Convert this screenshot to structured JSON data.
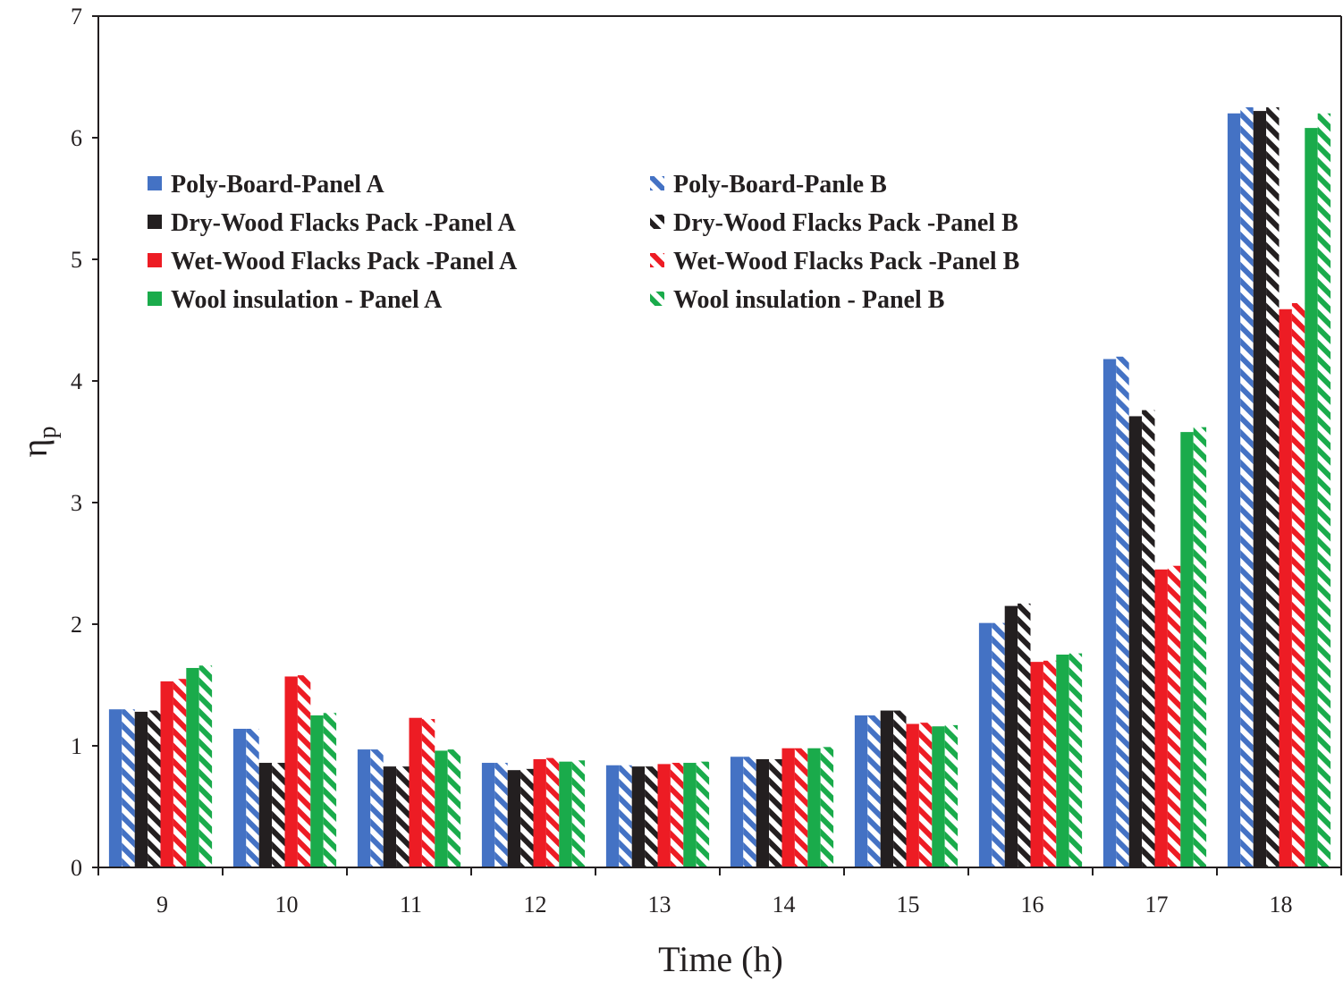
{
  "chart_data": {
    "type": "bar",
    "title": "",
    "xlabel": "Time (h)",
    "ylabel_main": "η",
    "ylabel_sub": "p",
    "ylim": [
      0,
      7
    ],
    "yticks": [
      "0",
      "1",
      "2",
      "3",
      "4",
      "5",
      "6",
      "7"
    ],
    "categories": [
      "9",
      "10",
      "11",
      "12",
      "13",
      "14",
      "15",
      "16",
      "17",
      "18"
    ],
    "series": [
      {
        "name": "Poly-Board-Panel A",
        "color": "#4472c4",
        "pattern": "solid",
        "values": [
          1.3,
          1.14,
          0.97,
          0.86,
          0.84,
          0.91,
          1.25,
          2.01,
          4.18,
          6.2
        ]
      },
      {
        "name": "Poly-Board-Panle B",
        "color": "#4472c4",
        "pattern": "hatched",
        "values": [
          1.3,
          1.14,
          0.97,
          0.86,
          0.84,
          0.91,
          1.25,
          2.01,
          4.2,
          6.25
        ]
      },
      {
        "name": "Dry-Wood Flacks Pack -Panel A",
        "color": "#231f20",
        "pattern": "solid",
        "values": [
          1.28,
          0.86,
          0.83,
          0.8,
          0.83,
          0.89,
          1.29,
          2.15,
          3.71,
          6.22
        ]
      },
      {
        "name": "Dry-Wood Flacks Pack -Panel B",
        "color": "#231f20",
        "pattern": "hatched",
        "values": [
          1.29,
          0.86,
          0.83,
          0.81,
          0.83,
          0.89,
          1.29,
          2.17,
          3.76,
          6.25
        ]
      },
      {
        "name": "Wet-Wood Flacks Pack -Panel A",
        "color": "#ed1c24",
        "pattern": "solid",
        "values": [
          1.53,
          1.57,
          1.23,
          0.89,
          0.85,
          0.98,
          1.18,
          1.69,
          2.45,
          4.59
        ]
      },
      {
        "name": "Wet-Wood Flacks Pack -Panel B",
        "color": "#ed1c24",
        "pattern": "hatched",
        "values": [
          1.55,
          1.58,
          1.22,
          0.9,
          0.86,
          0.98,
          1.19,
          1.7,
          2.48,
          4.64
        ]
      },
      {
        "name": "Wool insulation - Panel A",
        "color": "#1aab4b",
        "pattern": "solid",
        "values": [
          1.64,
          1.25,
          0.96,
          0.87,
          0.86,
          0.98,
          1.16,
          1.75,
          3.58,
          6.08
        ]
      },
      {
        "name": "Wool insulation - Panel B",
        "color": "#1aab4b",
        "pattern": "hatched",
        "values": [
          1.66,
          1.27,
          0.97,
          0.88,
          0.87,
          0.99,
          1.17,
          1.76,
          3.62,
          6.2
        ]
      }
    ],
    "legend_position": "upper-left, two columns",
    "grid": false
  }
}
